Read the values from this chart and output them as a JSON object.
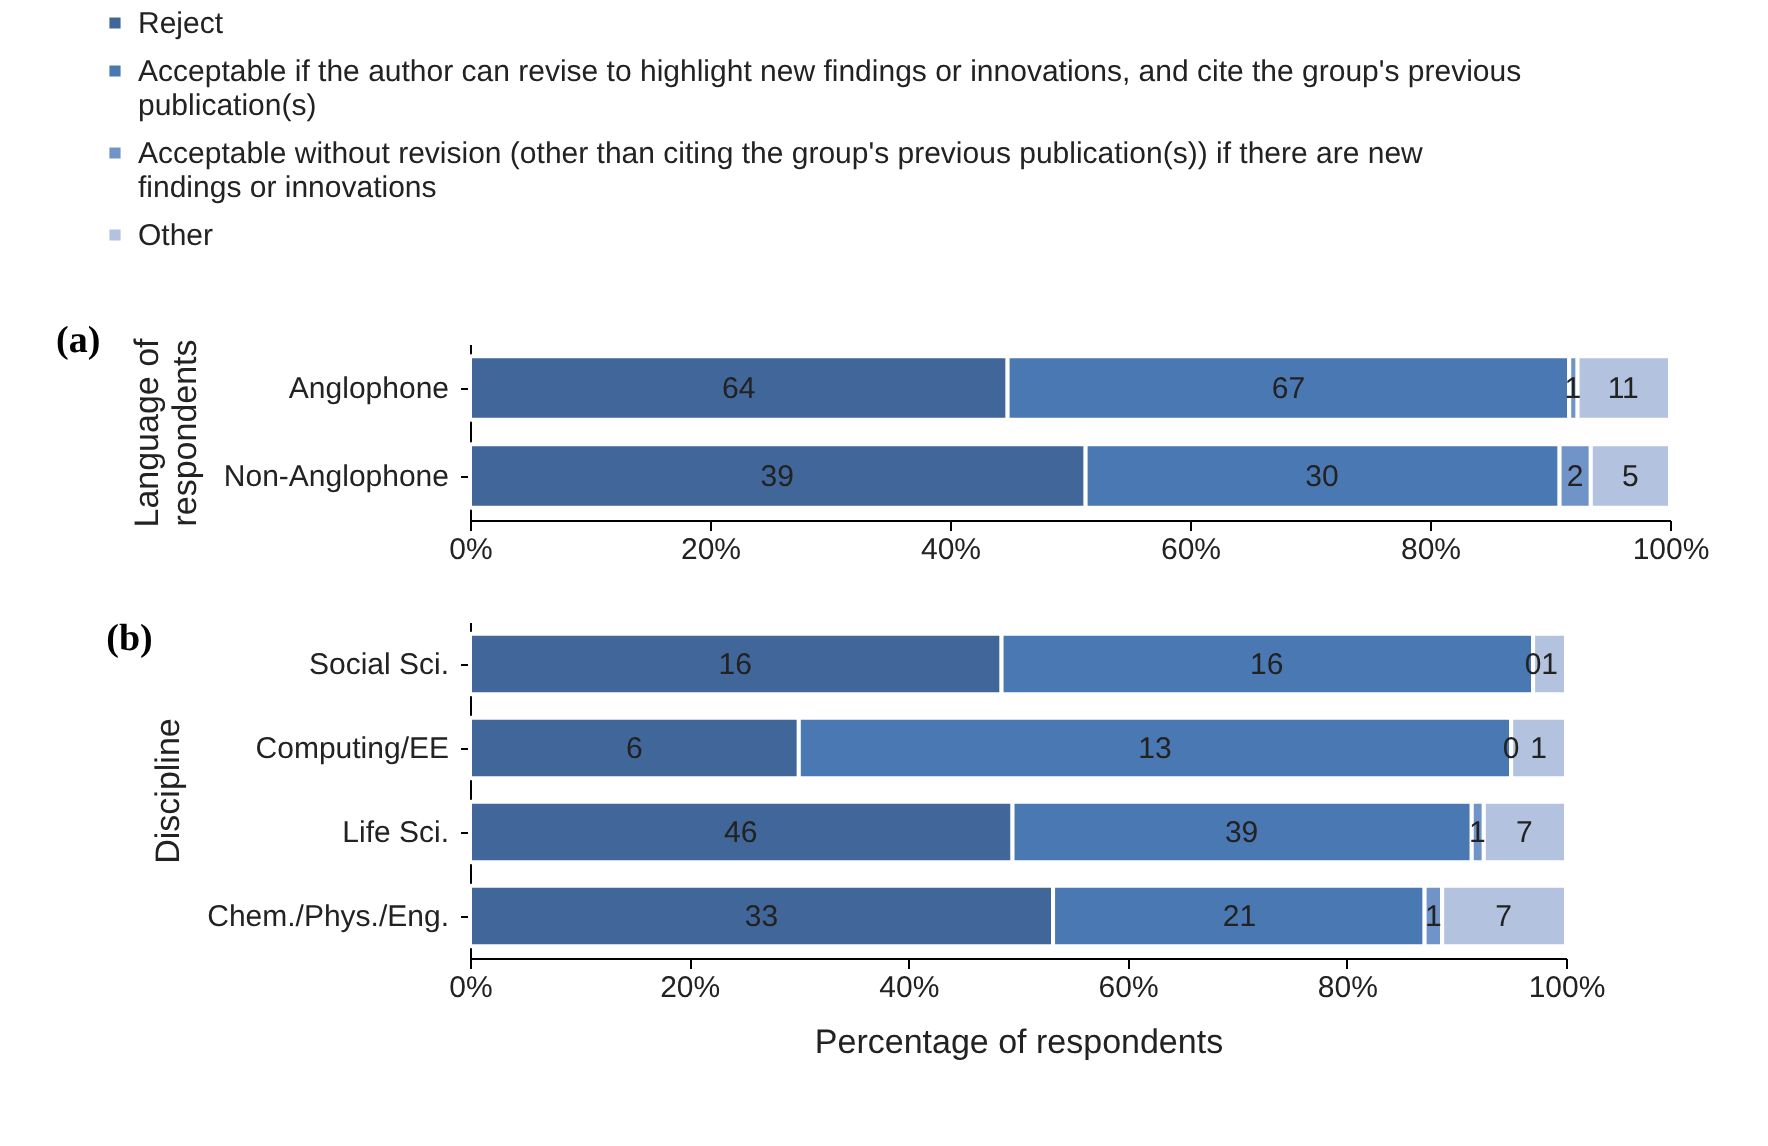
{
  "chart_data": [
    {
      "type": "bar",
      "orientation": "horizontal",
      "stacked": true,
      "title": "(a)",
      "ylabel": "Language of respondents",
      "legend": "top left",
      "categories": [
        "Anglophone",
        "Non-Anglophone"
      ],
      "series": [
        {
          "name": "Reject",
          "color": "#41669a",
          "values": [
            44.8,
            51.3
          ]
        },
        {
          "name": "Acceptable if the author can revise to highlight new findings or innovations, and cite the group's previous publication(s)",
          "color": "#4a78b2",
          "values": [
            46.8,
            39.5
          ]
        },
        {
          "name": "Acceptable without revision (other than citing the group's previous publication(s)) if there are new findings or innovations",
          "color": "#7094c8",
          "values": [
            0.7,
            2.6
          ]
        },
        {
          "name": "Other",
          "color": "#b3c2de",
          "values": [
            7.7,
            6.6
          ]
        }
      ],
      "annotations": [
        {
          "text": "64",
          "x": 22.4,
          "y": "Anglophone"
        },
        {
          "text": "67",
          "x": 68.2,
          "y": "Anglophone"
        },
        {
          "text": "1",
          "x": 91.9,
          "y": "Anglophone"
        },
        {
          "text": "11",
          "x": 96.1,
          "y": "Anglophone"
        },
        {
          "text": "39",
          "x": 25.6,
          "y": "Non-Anglophone"
        },
        {
          "text": "30",
          "x": 71.0,
          "y": "Non-Anglophone"
        },
        {
          "text": "2",
          "x": 92.1,
          "y": "Non-Anglophone"
        },
        {
          "text": "5",
          "x": 96.7,
          "y": "Non-Anglophone"
        }
      ],
      "xlim": [
        0,
        100
      ],
      "xticks": [
        {
          "value": 0,
          "label": "0%"
        },
        {
          "value": 20,
          "label": "20%"
        },
        {
          "value": 40,
          "label": "40%"
        },
        {
          "value": 60,
          "label": "60%"
        },
        {
          "value": 80,
          "label": "80%"
        },
        {
          "value": 100,
          "label": "100%"
        }
      ]
    },
    {
      "type": "bar",
      "orientation": "horizontal",
      "stacked": true,
      "title": "(b)",
      "ylabel": "Discipline",
      "xlabel": "Percentage of respondents",
      "categories": [
        "Social Sci.",
        "Computing/EE",
        "Life Sci.",
        "Chem./Phys./Eng."
      ],
      "series": [
        {
          "color": "#41669a",
          "values": [
            48.5,
            30,
            49.5,
            53.2
          ]
        },
        {
          "color": "#4a78b2",
          "values": [
            48.5,
            65,
            41.9,
            33.9
          ]
        },
        {
          "color": "#7094c8",
          "values": [
            0,
            0,
            1.1,
            1.6
          ]
        },
        {
          "color": "#b3c2de",
          "values": [
            3.0,
            5,
            7.5,
            11.3
          ]
        }
      ],
      "annotations": [
        {
          "text": "16",
          "x": 24.2,
          "y": "Social Sci."
        },
        {
          "text": "16",
          "x": 72.7,
          "y": "Social Sci."
        },
        {
          "text": "0",
          "x": 97.0,
          "y": "Social Sci."
        },
        {
          "text": "1",
          "x": 98.5,
          "y": "Social Sci."
        },
        {
          "text": "6",
          "x": 15,
          "y": "Computing/EE"
        },
        {
          "text": "13",
          "x": 62.5,
          "y": "Computing/EE"
        },
        {
          "text": "0",
          "x": 95,
          "y": "Computing/EE"
        },
        {
          "text": "1",
          "x": 97.5,
          "y": "Computing/EE"
        },
        {
          "text": "46",
          "x": 24.7,
          "y": "Life Sci."
        },
        {
          "text": "39",
          "x": 70.4,
          "y": "Life Sci."
        },
        {
          "text": "1",
          "x": 91.9,
          "y": "Life Sci."
        },
        {
          "text": "7",
          "x": 96.2,
          "y": "Life Sci."
        },
        {
          "text": "33",
          "x": 26.6,
          "y": "Chem./Phys./Eng."
        },
        {
          "text": "21",
          "x": 70.2,
          "y": "Chem./Phys./Eng."
        },
        {
          "text": "1",
          "x": 87.9,
          "y": "Chem./Phys./Eng."
        },
        {
          "text": "7",
          "x": 94.3,
          "y": "Chem./Phys./Eng."
        }
      ],
      "xlim": [
        0,
        100
      ],
      "xticks": [
        {
          "value": 0,
          "label": "0%"
        },
        {
          "value": 20,
          "label": "20%"
        },
        {
          "value": 40,
          "label": "40%"
        },
        {
          "value": 60,
          "label": "60%"
        },
        {
          "value": 80,
          "label": "80%"
        },
        {
          "value": 100,
          "label": "100%"
        }
      ]
    }
  ]
}
